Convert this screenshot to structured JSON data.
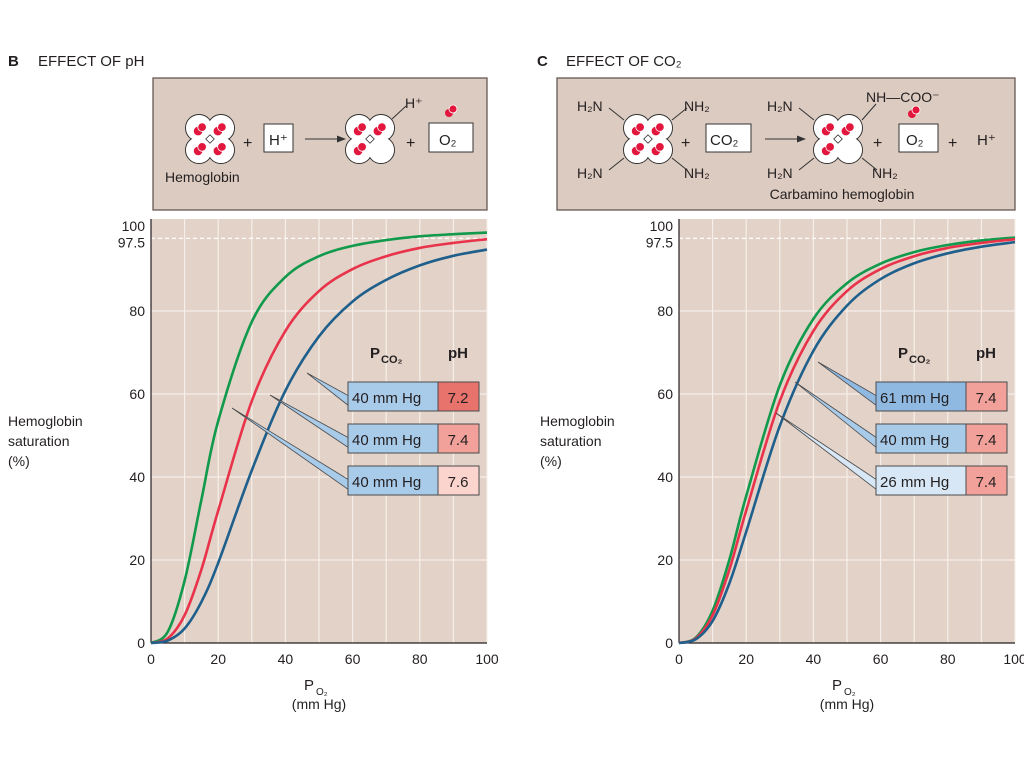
{
  "colors": {
    "plot_background": "#e2d2c8",
    "diagram_background": "#dccbc0",
    "grid": "#f6efe9",
    "green": "#119a4b",
    "red": "#e8334a",
    "blue": "#1f5f8b",
    "heme": "#e3173e"
  },
  "panels": [
    {
      "letter": "B",
      "title": "EFFECT OF pH",
      "diagram": {
        "reactant_label": "Hemoglobin",
        "plus1": "+",
        "reagent": "H⁺",
        "bound_label": "H⁺",
        "plus2": "+",
        "product": "O₂"
      },
      "legend": {
        "pco2_header_symbol": "P",
        "pco2_header_sub": "CO₂",
        "ph_header": "pH",
        "rows": [
          {
            "pco2": "40 mm Hg",
            "ph": "7.2",
            "pco2_color": "#a9cbea",
            "ph_color": "#e8726c",
            "curve": "blue"
          },
          {
            "pco2": "40 mm Hg",
            "ph": "7.4",
            "pco2_color": "#a9cbea",
            "ph_color": "#f2a19a",
            "curve": "red"
          },
          {
            "pco2": "40 mm Hg",
            "ph": "7.6",
            "pco2_color": "#a9cbea",
            "ph_color": "#fbd4cd",
            "curve": "green"
          }
        ]
      }
    },
    {
      "letter": "C",
      "title": "EFFECT OF CO₂",
      "diagram": {
        "amine": "H₂N",
        "amine_r": "NH₂",
        "plus1": "+",
        "reagent": "CO₂",
        "carbamino_group": "NH—COO⁻",
        "product_label": "Carbamino hemoglobin",
        "plus2": "+",
        "product": "O₂",
        "plus3": "+",
        "proton": "H⁺"
      },
      "legend": {
        "pco2_header_symbol": "P",
        "pco2_header_sub": "CO₂",
        "ph_header": "pH",
        "rows": [
          {
            "pco2": "61 mm Hg",
            "ph": "7.4",
            "pco2_color": "#8fb9e1",
            "ph_color": "#f2a19a",
            "curve": "blue"
          },
          {
            "pco2": "40 mm Hg",
            "ph": "7.4",
            "pco2_color": "#a9cbea",
            "ph_color": "#f2a19a",
            "curve": "red"
          },
          {
            "pco2": "26 mm Hg",
            "ph": "7.4",
            "pco2_color": "#d8e7f5",
            "ph_color": "#f2a19a",
            "curve": "green"
          }
        ]
      }
    }
  ],
  "chart_data": [
    {
      "type": "line",
      "title": "EFFECT OF pH",
      "ylabel": "Hemoglobin saturation (%)",
      "xlabel": "PO₂ (mm Hg)",
      "xlim": [
        0,
        100
      ],
      "ylim": [
        0,
        100
      ],
      "xticks": [
        "0",
        "20",
        "40",
        "60",
        "80",
        "100"
      ],
      "yticks": [
        "0",
        "20",
        "40",
        "60",
        "80",
        "97.5",
        "100"
      ],
      "reference_line": 97.5,
      "grid": true,
      "x": [
        0,
        5,
        10,
        15,
        20,
        30,
        40,
        50,
        60,
        70,
        80,
        90,
        100
      ],
      "series": [
        {
          "color": "green",
          "values": [
            0,
            2.7,
            15.0,
            34.5,
            53.5,
            77.4,
            88.2,
            93.2,
            95.7,
            97.1,
            98.0,
            98.5,
            98.9
          ]
        },
        {
          "color": "red",
          "values": [
            0,
            1.1,
            6.7,
            17.7,
            31.9,
            58.3,
            75.2,
            84.8,
            90.1,
            93.2,
            95.2,
            96.4,
            97.3
          ]
        },
        {
          "color": "blue",
          "values": [
            0,
            0.6,
            3.5,
            9.9,
            19.3,
            41.6,
            60.8,
            73.9,
            82.3,
            87.5,
            91.0,
            93.3,
            94.8
          ]
        }
      ]
    },
    {
      "type": "line",
      "title": "EFFECT OF CO₂",
      "ylabel": "Hemoglobin saturation (%)",
      "xlabel": "PO₂ (mm Hg)",
      "xlim": [
        0,
        100
      ],
      "ylim": [
        0,
        100
      ],
      "xticks": [
        "0",
        "20",
        "40",
        "60",
        "80",
        "100"
      ],
      "yticks": [
        "0",
        "20",
        "40",
        "60",
        "80",
        "97.5",
        "100"
      ],
      "reference_line": 97.5,
      "grid": true,
      "x": [
        0,
        5,
        10,
        15,
        20,
        30,
        40,
        50,
        60,
        70,
        80,
        90,
        100
      ],
      "series": [
        {
          "color": "green",
          "values": [
            0,
            1.3,
            7.8,
            20.1,
            35.4,
            62.1,
            78.1,
            86.7,
            91.4,
            94.2,
            95.9,
            97.0,
            97.7
          ]
        },
        {
          "color": "red",
          "values": [
            0,
            1.1,
            6.7,
            17.7,
            31.9,
            58.3,
            75.2,
            84.8,
            90.1,
            93.2,
            95.2,
            96.4,
            97.3
          ]
        },
        {
          "color": "blue",
          "values": [
            0,
            0.9,
            5.3,
            14.4,
            26.8,
            52.3,
            70.4,
            81.3,
            87.7,
            91.5,
            93.9,
            95.5,
            96.6
          ]
        }
      ]
    }
  ],
  "axis_text": {
    "ylabel_lines": [
      "Hemoglobin",
      "saturation",
      "(%)"
    ],
    "xlabel_symbol": "P",
    "xlabel_sub": "O₂",
    "xlabel_units": "(mm Hg)"
  }
}
